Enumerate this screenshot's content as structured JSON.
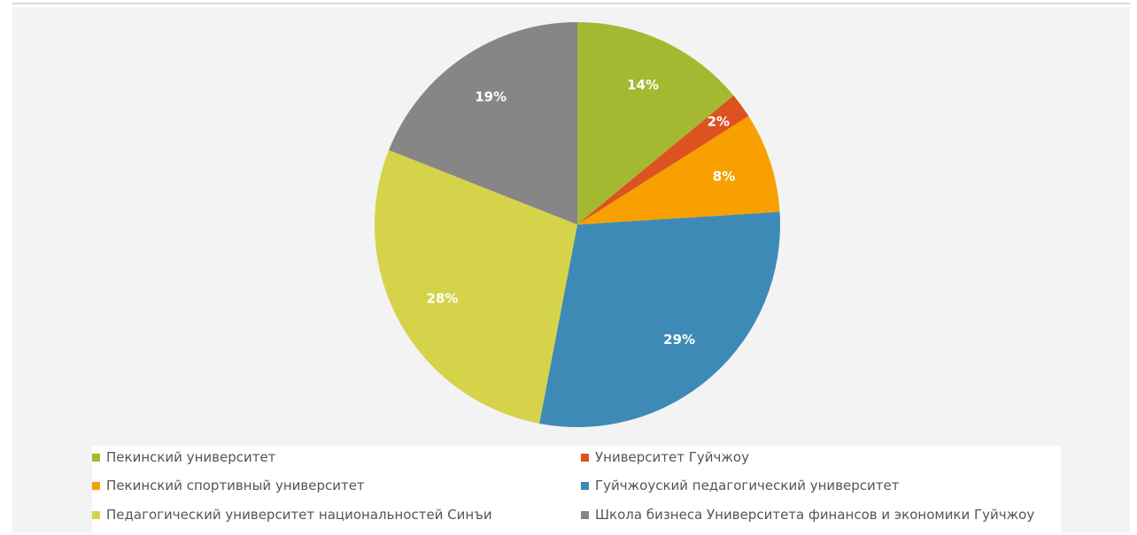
{
  "chart_data": {
    "type": "pie",
    "title": "",
    "legend_position": "bottom",
    "slices": [
      {
        "label": "Пекинский университет",
        "value": 14,
        "value_label": "14%",
        "color": "#a5b832"
      },
      {
        "label": "Университет Гуйчжоу",
        "value": 2,
        "value_label": "2%",
        "color": "#dd5220"
      },
      {
        "label": "Пекинский спортивный университет",
        "value": 8,
        "value_label": "8%",
        "color": "#f7a000"
      },
      {
        "label": "Гуйчжоуский педагогический университет",
        "value": 29,
        "value_label": "29%",
        "color": "#3e8ab6"
      },
      {
        "label": "Педагогический университет национальностей Синъи",
        "value": 28,
        "value_label": "28%",
        "color": "#d4d34a"
      },
      {
        "label": "Школа бизнеса Университета финансов и экономики Гуйчжоу",
        "value": 19,
        "value_label": "19%",
        "color": "#868686"
      }
    ]
  }
}
